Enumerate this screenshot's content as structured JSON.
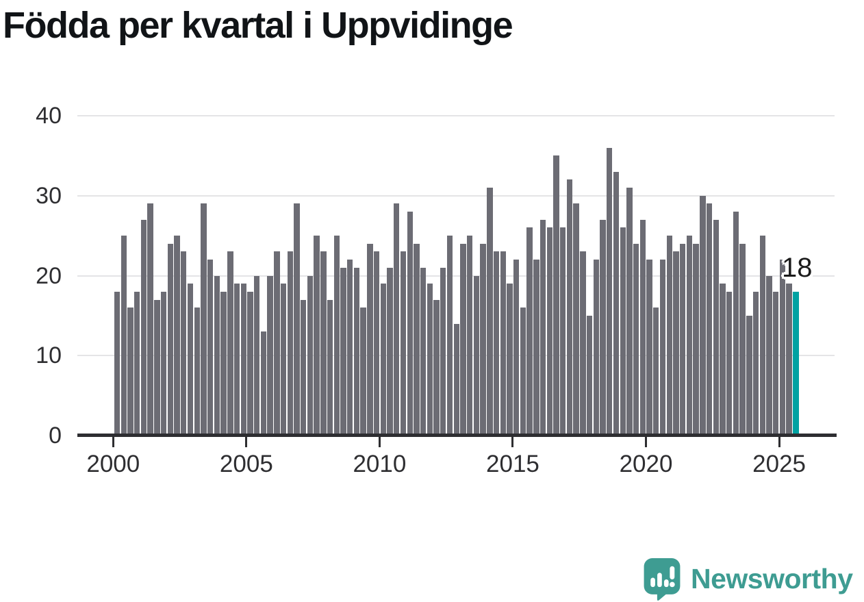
{
  "title": "Födda per kvartal i Uppvidinge",
  "annotation": {
    "value_label": "18"
  },
  "logo": {
    "brand": "Newsworthy"
  },
  "colors": {
    "bar": "#6c6c74",
    "highlight": "#00a2a2",
    "gridline": "#e4e4e6",
    "axis": "#2e2e31",
    "logo_teal": "#3e9c92"
  },
  "chart_data": {
    "type": "bar",
    "title": "Födda per kvartal i Uppvidinge",
    "frequency": "quarterly",
    "start": "2000 Q1",
    "end": "2025 Q3",
    "values": [
      18,
      25,
      16,
      18,
      27,
      29,
      17,
      18,
      24,
      25,
      23,
      19,
      16,
      29,
      22,
      20,
      18,
      23,
      19,
      19,
      18,
      20,
      13,
      20,
      23,
      19,
      23,
      29,
      17,
      20,
      25,
      23,
      17,
      25,
      21,
      22,
      21,
      16,
      24,
      23,
      19,
      21,
      29,
      23,
      28,
      24,
      21,
      19,
      17,
      21,
      25,
      14,
      24,
      25,
      20,
      24,
      31,
      23,
      23,
      19,
      22,
      16,
      26,
      22,
      27,
      26,
      35,
      26,
      32,
      29,
      23,
      15,
      22,
      27,
      36,
      33,
      26,
      31,
      24,
      27,
      22,
      16,
      22,
      25,
      23,
      24,
      25,
      24,
      30,
      29,
      27,
      19,
      18,
      28,
      24,
      15,
      18,
      25,
      20,
      18,
      22,
      19,
      18
    ],
    "highlight": {
      "index": 102,
      "quarter": "2025 Q3",
      "value": 18,
      "label": "18",
      "color": "#00a2a2"
    },
    "y_ticks": [
      0,
      10,
      20,
      30,
      40
    ],
    "ylim": [
      0,
      40
    ],
    "x_tick_labels": [
      "2000",
      "2005",
      "2010",
      "2015",
      "2020",
      "2025"
    ],
    "grid": "horizontal",
    "legend": "none",
    "xlabel": "",
    "ylabel": ""
  }
}
